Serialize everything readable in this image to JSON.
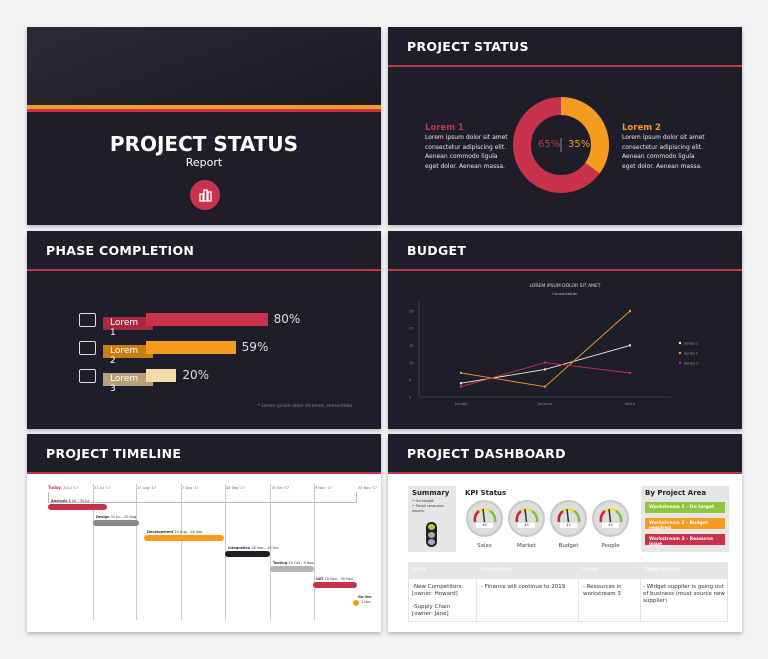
{
  "colors": {
    "dark": "#1d1e2a",
    "red": "#c8334b",
    "orange": "#f39c1f",
    "tan": "#f5d9a8",
    "green": "#8dc63f"
  },
  "title_slide": {
    "title": "PROJECT STATUS",
    "subtitle": "Report",
    "icon": "bar-chart-icon"
  },
  "status_slide": {
    "title": "PROJECT STATUS",
    "left": {
      "heading": "Lorem 1",
      "text": "Lorem ipsum dolor sit amet consectetur adipiscing elit. Aenean commodo ligula eget dolor. Aenean massa."
    },
    "right": {
      "heading": "Lorem 2",
      "text": "Lorem ipsum dolor sit amet consectetur adipiscing elit. Aenean commodo ligula eget dolor. Aenean massa."
    },
    "donut": {
      "values": [
        65,
        35
      ],
      "labels": [
        "65%",
        "35%"
      ]
    }
  },
  "phase_slide": {
    "title": "PHASE COMPLETION",
    "items": [
      {
        "label": "Lorem 1",
        "value": 80,
        "pct": "80%",
        "icon": "storefront-icon"
      },
      {
        "label": "Lorem 2",
        "value": 59,
        "pct": "59%",
        "icon": "credit-card-icon"
      },
      {
        "label": "Lorem 3",
        "value": 20,
        "pct": "20%",
        "icon": "password-click-icon"
      }
    ],
    "footnote": "* Lorem ipsum dolor sit amet, consectetur"
  },
  "budget_slide": {
    "title": "BUDGET"
  },
  "chart_data": {
    "type": "line",
    "title": "LOREM IPSUM DOLOR SIT AMET",
    "subtitle": "Consectetuer",
    "categories": [
      "Europe",
      "America",
      "Africa"
    ],
    "yticks": [
      0,
      5,
      10,
      15,
      20,
      25
    ],
    "ylim": [
      0,
      25
    ],
    "legend": "right",
    "series": [
      {
        "name": "Series 1",
        "color": "#f0ead6",
        "values": [
          4,
          8,
          15
        ]
      },
      {
        "name": "Series 2",
        "color": "#f39c1f",
        "values": [
          7,
          3,
          25
        ]
      },
      {
        "name": "Series 3",
        "color": "#c8334b",
        "values": [
          3,
          10,
          7
        ]
      }
    ]
  },
  "timeline_slide": {
    "title": "PROJECT TIMELINE",
    "today": "Today",
    "dates": [
      "8 Jul '17",
      "31 Jul '17",
      "17 Aug '17",
      "7 Sep '17",
      "28 Sep '17",
      "19 Oct '17",
      "9 Nov '17",
      "30 Nov '17"
    ],
    "tasks": [
      {
        "name": "Analysis",
        "range": "8 Jul - 30 Jul"
      },
      {
        "name": "Design",
        "range": "31 Jul - 20 Aug"
      },
      {
        "name": "Development",
        "range": "20 Aug - 28 Sep"
      },
      {
        "name": "Integration",
        "range": "28 Sep - 19 Oct"
      },
      {
        "name": "Testing",
        "range": "20 Oct - 9 Nov"
      },
      {
        "name": "UAT",
        "range": "10 Nov - 30 Nov"
      },
      {
        "name": "Go live",
        "range": "1 Dec"
      }
    ]
  },
  "dashboard_slide": {
    "title": "PROJECT DASHBOARD",
    "summary": {
      "heading": "Summary",
      "bullets": [
        "On target",
        "Small resource issues."
      ]
    },
    "kpi": {
      "heading": "KPI Status",
      "gauges": [
        {
          "label": "Sales",
          "value": "45"
        },
        {
          "label": "Market",
          "value": "45"
        },
        {
          "label": "Budget",
          "value": "45"
        },
        {
          "label": "People",
          "value": "45"
        }
      ]
    },
    "areas": {
      "heading": "By Project Area",
      "items": [
        {
          "label": "Workstream 1 - On target",
          "color": "#8dc63f"
        },
        {
          "label": "Workstream 2 - Budget required",
          "color": "#f39c1f"
        },
        {
          "label": "Workstream 3 - Resource issue",
          "color": "#c8334b"
        }
      ]
    },
    "table": {
      "headers": [
        "Risks",
        "Assumptions",
        "Issues",
        "Dependencies"
      ],
      "cells": [
        "-New Competitors [owner: Howard]",
        "-Supply Chain [owner: Jane]",
        "- Finance will continue to 2019",
        "- Resources in workstream 3",
        "- Widget supplier is going out of business (must source new supplier)"
      ]
    }
  }
}
